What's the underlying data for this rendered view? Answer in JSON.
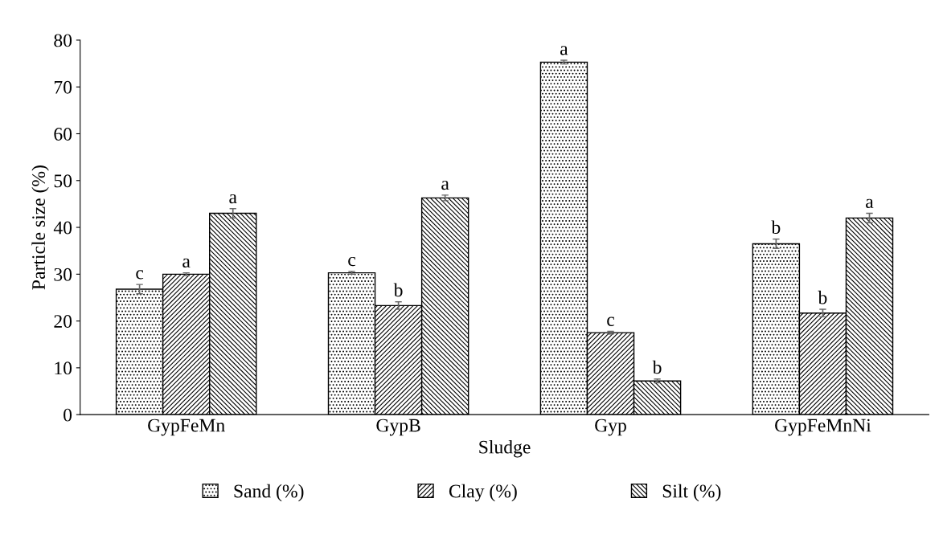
{
  "chart_data": {
    "type": "bar",
    "xlabel": "Sludge",
    "ylabel": "Particle size (%)",
    "categories": [
      "GypFeMn",
      "GypB",
      "Gyp",
      "GypFeMnNi"
    ],
    "series": [
      {
        "name": "Sand (%)",
        "color": "#000000",
        "values": [
          26.8,
          30.3,
          75.3,
          36.5
        ],
        "errors": [
          1.0,
          0.3,
          0.4,
          1.0
        ],
        "value_labels": [
          "c",
          "c",
          "a",
          "b"
        ]
      },
      {
        "name": "Clay (%)",
        "color": "#000000",
        "values": [
          30.0,
          23.3,
          17.5,
          21.7
        ],
        "errors": [
          0.3,
          0.8,
          0.3,
          0.8
        ],
        "value_labels": [
          "a",
          "b",
          "c",
          "b"
        ]
      },
      {
        "name": "Silt (%)",
        "color": "#000000",
        "values": [
          43.0,
          46.3,
          7.2,
          42.0
        ],
        "errors": [
          1.0,
          0.6,
          0.4,
          1.0
        ],
        "value_labels": [
          "a",
          "a",
          "b",
          "a"
        ]
      }
    ],
    "ylim": [
      0,
      80
    ],
    "yticks": [
      0,
      10,
      20,
      30,
      40,
      50,
      60,
      70,
      80
    ],
    "grid": false,
    "legend": "bottom"
  }
}
